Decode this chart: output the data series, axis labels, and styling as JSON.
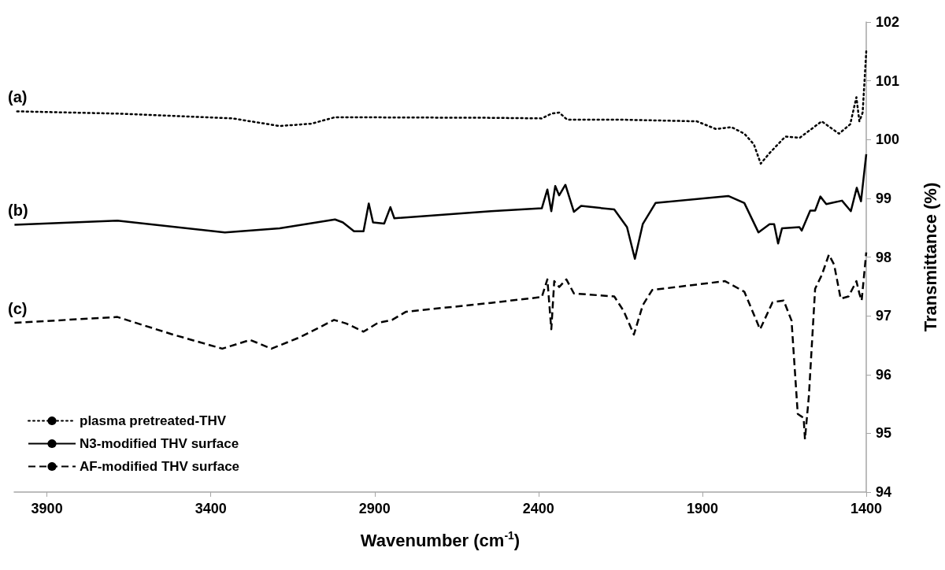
{
  "chart_data": {
    "type": "line",
    "xlabel": "Wavenumber (cm$^{-1}$)",
    "ylabel": "Transmittance (%)",
    "xlim": [
      4000,
      1400
    ],
    "xticks": [
      3900,
      3400,
      2900,
      2400,
      1900,
      1400
    ],
    "ylim": [
      94,
      102
    ],
    "yticks": [
      94,
      95,
      96,
      97,
      98,
      99,
      100,
      101,
      102
    ],
    "grid": false,
    "legend": "bottom left",
    "marker": "none",
    "annotations": [
      "(a)",
      "(b)",
      "(c)"
    ],
    "series": [
      {
        "name": "plasma pretreated-THV",
        "color": "#000000",
        "line_style": "dotted",
        "x": [
          3991,
          3672,
          3334,
          3190,
          3093,
          3021,
          2545,
          2390,
          2361,
          2337,
          2313,
          2159,
          1917,
          1859,
          1811,
          1772,
          1743,
          1722,
          1695,
          1647,
          1603,
          1536,
          1483,
          1449,
          1430,
          1421,
          1411,
          1400
        ],
        "values": [
          100.48,
          100.44,
          100.36,
          100.23,
          100.27,
          100.38,
          100.37,
          100.36,
          100.44,
          100.46,
          100.34,
          100.34,
          100.31,
          100.18,
          100.21,
          100.1,
          99.92,
          99.59,
          99.77,
          100.05,
          100.03,
          100.31,
          100.1,
          100.26,
          100.72,
          100.31,
          100.46,
          101.5
        ]
      },
      {
        "name": "N3-modified THV surface",
        "color": "#000000",
        "line_style": "solid",
        "x": [
          3999,
          3685,
          3357,
          3190,
          3021,
          2997,
          2963,
          2934,
          2918,
          2905,
          2871,
          2852,
          2840,
          2545,
          2390,
          2373,
          2361,
          2349,
          2337,
          2318,
          2292,
          2270,
          2169,
          2130,
          2106,
          2082,
          2043,
          1821,
          1772,
          1729,
          1695,
          1681,
          1669,
          1657,
          1604,
          1597,
          1571,
          1556,
          1540,
          1522,
          1474,
          1447,
          1429,
          1416,
          1400
        ],
        "values": [
          98.55,
          98.62,
          98.42,
          98.49,
          98.64,
          98.59,
          98.44,
          98.44,
          98.91,
          98.59,
          98.57,
          98.85,
          98.66,
          98.78,
          98.83,
          99.15,
          98.78,
          99.21,
          99.05,
          99.23,
          98.77,
          98.87,
          98.81,
          98.51,
          97.97,
          98.56,
          98.92,
          99.04,
          98.92,
          98.42,
          98.56,
          98.56,
          98.23,
          98.49,
          98.51,
          98.45,
          98.79,
          98.79,
          99.03,
          98.9,
          98.96,
          98.78,
          99.18,
          98.95,
          99.75
        ]
      },
      {
        "name": "AF-modified THV surface",
        "color": "#000000",
        "line_style": "dashed",
        "x": [
          3999,
          3685,
          3521,
          3365,
          3280,
          3215,
          3126,
          3024,
          2987,
          2934,
          2890,
          2847,
          2804,
          2545,
          2390,
          2373,
          2361,
          2352,
          2337,
          2315,
          2292,
          2169,
          2140,
          2109,
          2082,
          2053,
          1831,
          1772,
          1724,
          1686,
          1652,
          1628,
          1609,
          1591,
          1587,
          1575,
          1556,
          1536,
          1514,
          1498,
          1478,
          1454,
          1430,
          1421,
          1414,
          1400
        ],
        "values": [
          96.88,
          96.98,
          96.69,
          96.44,
          96.59,
          96.44,
          96.64,
          96.93,
          96.87,
          96.73,
          96.88,
          96.93,
          97.07,
          97.22,
          97.32,
          97.62,
          96.77,
          97.59,
          97.49,
          97.62,
          97.38,
          97.33,
          97.08,
          96.68,
          97.18,
          97.44,
          97.59,
          97.41,
          96.77,
          97.23,
          97.26,
          96.92,
          95.33,
          95.26,
          94.9,
          95.64,
          97.46,
          97.69,
          98.04,
          97.87,
          97.29,
          97.33,
          97.59,
          97.38,
          97.26,
          98.08
        ]
      }
    ]
  }
}
